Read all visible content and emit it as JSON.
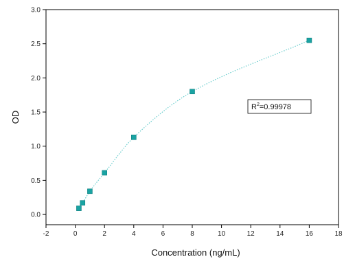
{
  "chart_data": {
    "type": "scatter",
    "xlabel": "Concentration (ng/mL)",
    "ylabel": "OD",
    "xlim": [
      -2,
      18
    ],
    "ylim": [
      -0.15,
      3.0
    ],
    "x_ticks": [
      -2,
      0,
      2,
      4,
      6,
      8,
      10,
      12,
      14,
      16,
      18
    ],
    "y_ticks": [
      0.0,
      0.5,
      1.0,
      1.5,
      2.0,
      2.5,
      3.0
    ],
    "y_tick_labels": [
      "0.0",
      "0.5",
      "1.0",
      "1.5",
      "2.0",
      "2.5",
      "3.0"
    ],
    "grid": false,
    "legend": "none",
    "series": [
      {
        "x": [
          0.25,
          0.5,
          1,
          2,
          4,
          8,
          16
        ],
        "y": [
          0.09,
          0.17,
          0.34,
          0.61,
          1.13,
          1.8,
          2.55
        ],
        "marker": "square",
        "color": "#1aa3a3"
      }
    ],
    "fit_curve": {
      "style": "dotted",
      "color": "#66cccc",
      "x_range": [
        0.25,
        16
      ]
    },
    "annotation": {
      "r_label": "R",
      "r_exp": "2",
      "r_value": "=0.99978",
      "position": "right-middle"
    }
  }
}
